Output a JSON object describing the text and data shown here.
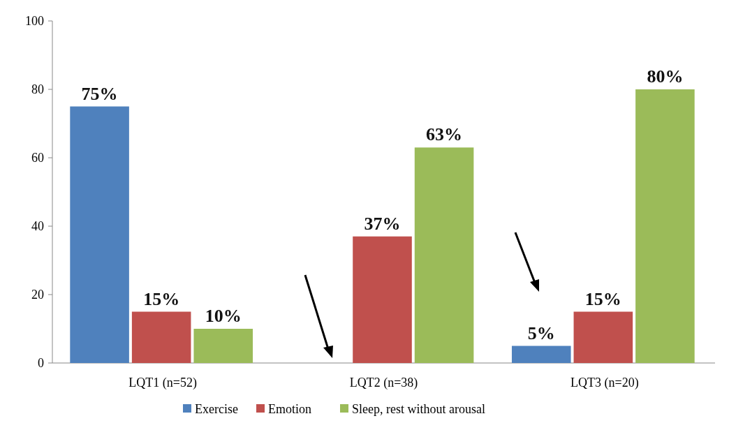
{
  "chart_data": {
    "type": "bar",
    "categories": [
      "LQT1 (n=52)",
      "LQT2 (n=38)",
      "LQT3 (n=20)"
    ],
    "series": [
      {
        "name": "Exercise",
        "color": "#4f81bd",
        "values": [
          75,
          0,
          5
        ],
        "value_labels": [
          "75%",
          null,
          "5%"
        ]
      },
      {
        "name": "Emotion",
        "color": "#c0504d",
        "values": [
          15,
          37,
          15
        ],
        "value_labels": [
          "15%",
          "37%",
          "15%"
        ]
      },
      {
        "name": "Sleep, rest without arousal",
        "color": "#9bbb59",
        "values": [
          10,
          63,
          80
        ],
        "value_labels": [
          "10%",
          "63%",
          "80%"
        ]
      }
    ],
    "ylim": [
      0,
      100
    ],
    "yticks": [
      0,
      20,
      40,
      60,
      80,
      100
    ],
    "legend": "bottom"
  }
}
